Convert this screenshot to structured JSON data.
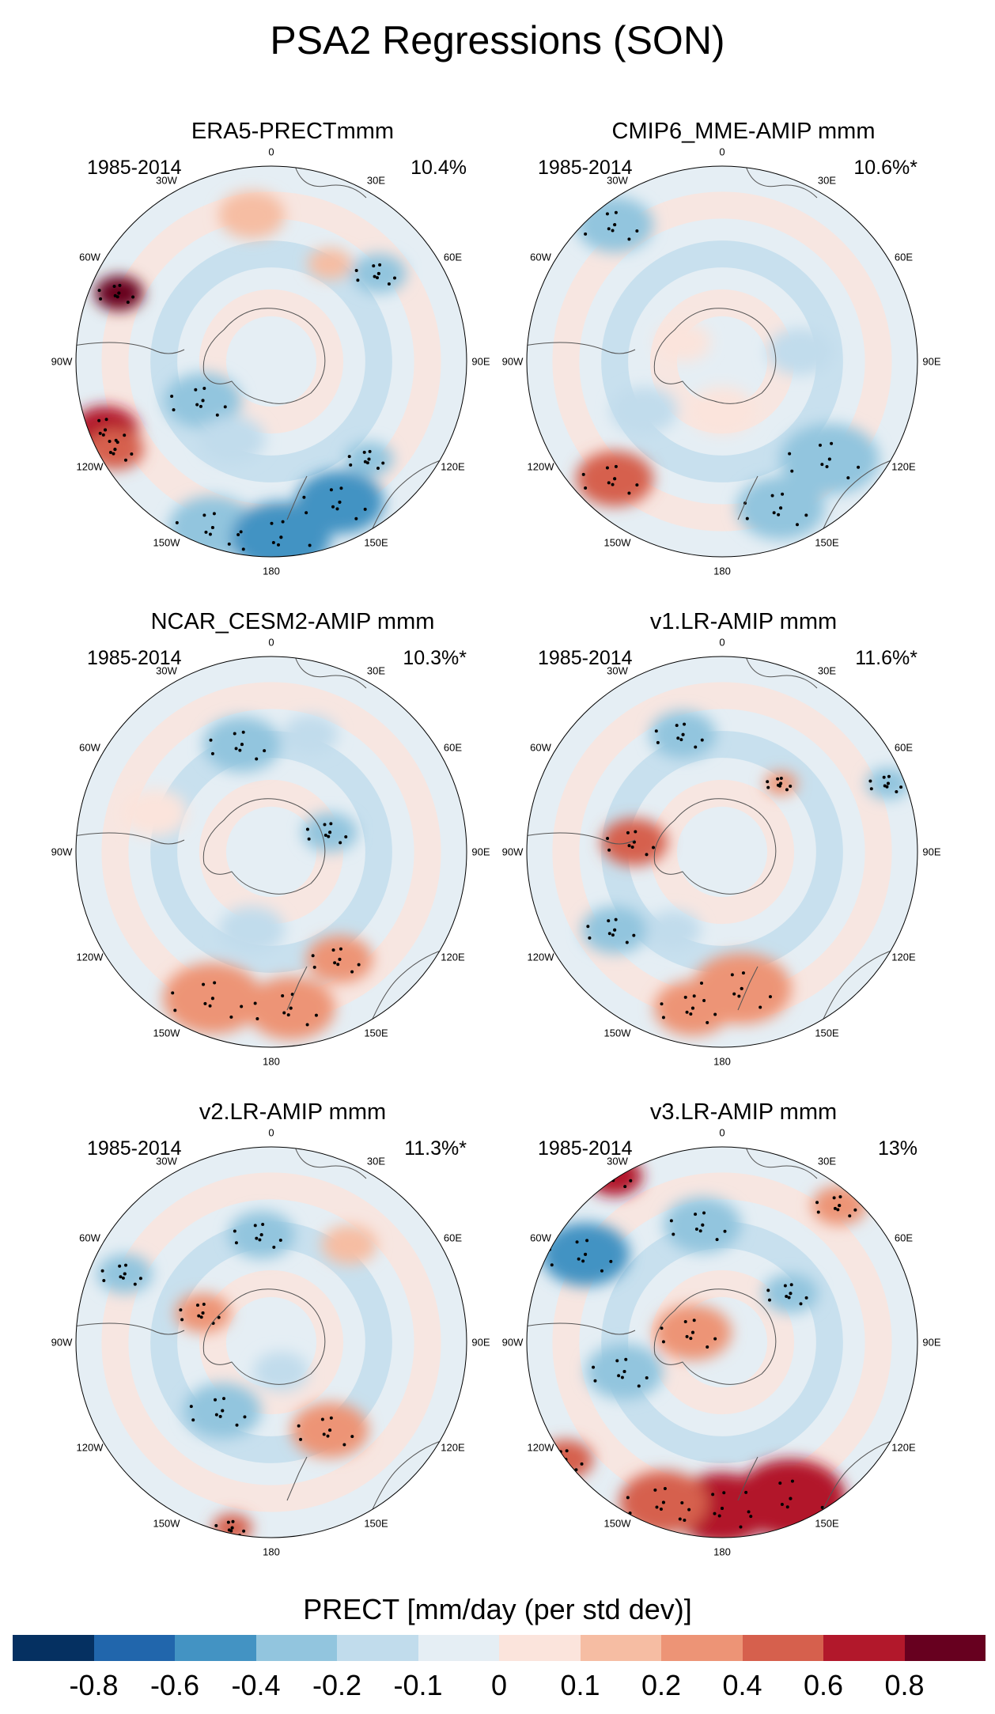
{
  "title": "PSA2 Regressions (SON)",
  "colorbar": {
    "title": "PRECT [mm/day (per std dev)]",
    "labels": [
      "-0.8",
      "-0.6",
      "-0.4",
      "-0.2",
      "-0.1",
      "0",
      "0.1",
      "0.2",
      "0.4",
      "0.6",
      "0.8"
    ],
    "colors": [
      "#053061",
      "#2166ac",
      "#4393c3",
      "#92c5de",
      "#c1dcec",
      "#e5eef4",
      "#fbe4dc",
      "#f6bda3",
      "#ed9476",
      "#d6604d",
      "#b2182b",
      "#67001f"
    ]
  },
  "longitude_labels": {
    "lon0": "0",
    "lon30e": "30E",
    "lon60e": "60E",
    "lon90e": "90E",
    "lon120e": "120E",
    "lon150e": "150E",
    "lon180": "180",
    "lon150w": "150W",
    "lon120w": "120W",
    "lon90w": "90W",
    "lon60w": "60W",
    "lon30w": "30W"
  },
  "panels": [
    {
      "title": "ERA5-PRECTmmm",
      "period": "1985-2014",
      "pct": "10.4%"
    },
    {
      "title": "CMIP6_MME-AMIP  mmm",
      "period": "1985-2014",
      "pct": "10.6%*"
    },
    {
      "title": "NCAR_CESM2-AMIP  mmm",
      "period": "1985-2014",
      "pct": "10.3%*"
    },
    {
      "title": "v1.LR-AMIP  mmm",
      "period": "1985-2014",
      "pct": "11.6%*"
    },
    {
      "title": "v2.LR-AMIP  mmm",
      "period": "1985-2014",
      "pct": "11.3%*"
    },
    {
      "title": "v3.LR-AMIP  mmm",
      "period": "1985-2014",
      "pct": "13%"
    }
  ]
}
